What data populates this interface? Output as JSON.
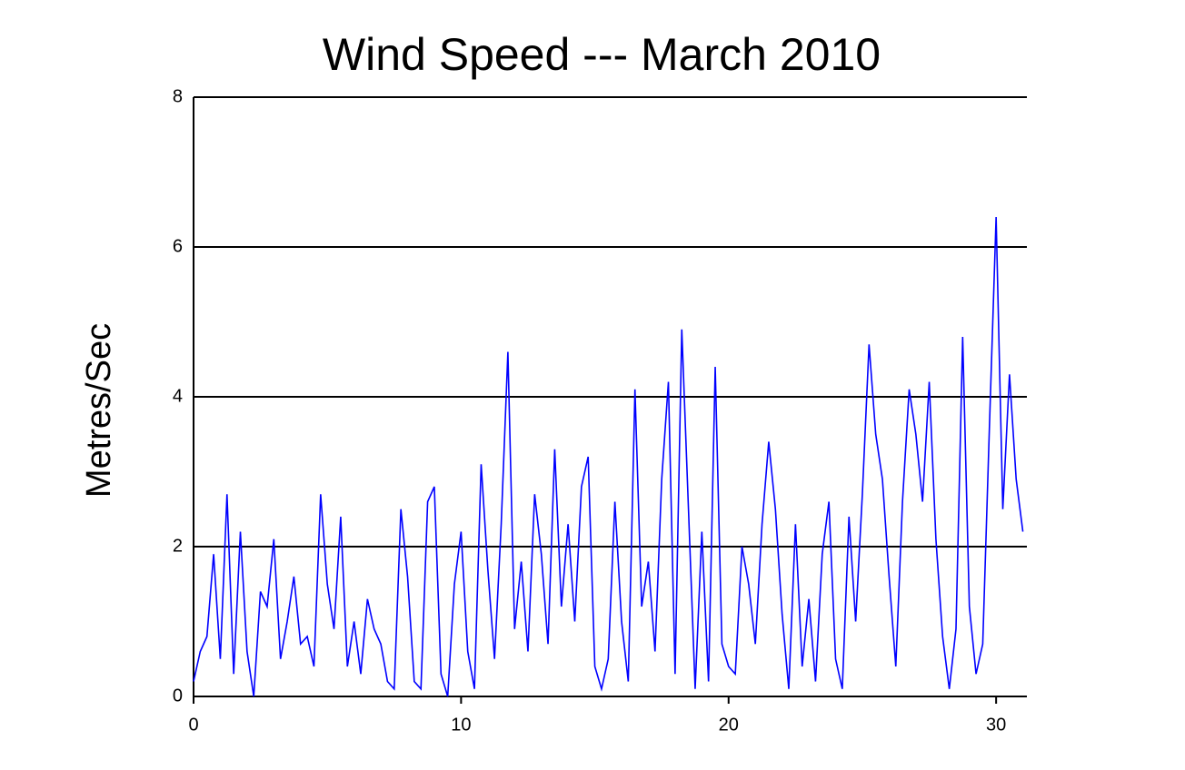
{
  "chart_data": {
    "type": "line",
    "title": "Wind Speed --- March 2010",
    "ylabel": "Metres/Sec",
    "x": [
      0,
      0.25,
      0.5,
      0.75,
      1,
      1.25,
      1.5,
      1.75,
      2,
      2.25,
      2.5,
      2.75,
      3,
      3.25,
      3.5,
      3.75,
      4,
      4.25,
      4.5,
      4.75,
      5,
      5.25,
      5.5,
      5.75,
      6,
      6.25,
      6.5,
      6.75,
      7,
      7.25,
      7.5,
      7.75,
      8,
      8.25,
      8.5,
      8.75,
      9,
      9.25,
      9.5,
      9.75,
      10,
      10.25,
      10.5,
      10.75,
      11,
      11.25,
      11.5,
      11.75,
      12,
      12.25,
      12.5,
      12.75,
      13,
      13.25,
      13.5,
      13.75,
      14,
      14.25,
      14.5,
      14.75,
      15,
      15.25,
      15.5,
      15.75,
      16,
      16.25,
      16.5,
      16.75,
      17,
      17.25,
      17.5,
      17.75,
      18,
      18.25,
      18.5,
      18.75,
      19,
      19.25,
      19.5,
      19.75,
      20,
      20.25,
      20.5,
      20.75,
      21,
      21.25,
      21.5,
      21.75,
      22,
      22.25,
      22.5,
      22.75,
      23,
      23.25,
      23.5,
      23.75,
      24,
      24.25,
      24.5,
      24.75,
      25,
      25.25,
      25.5,
      25.75,
      26,
      26.25,
      26.5,
      26.75,
      27,
      27.25,
      27.5,
      27.75,
      28,
      28.25,
      28.5,
      28.75,
      29,
      29.25,
      29.5,
      29.75,
      30,
      30.25,
      30.5,
      30.75,
      31
    ],
    "series": [
      {
        "name": "Wind speed",
        "color": "#0000ff",
        "values": [
          0.2,
          0.6,
          0.8,
          1.9,
          0.5,
          2.7,
          0.3,
          2.2,
          0.6,
          0.0,
          1.4,
          1.2,
          2.1,
          0.5,
          1.0,
          1.6,
          0.7,
          0.8,
          0.4,
          2.7,
          1.5,
          0.9,
          2.4,
          0.4,
          1.0,
          0.3,
          1.3,
          0.9,
          0.7,
          0.2,
          0.1,
          2.5,
          1.6,
          0.2,
          0.1,
          2.6,
          2.8,
          0.3,
          0.0,
          1.5,
          2.2,
          0.6,
          0.1,
          3.1,
          1.7,
          0.5,
          2.3,
          4.6,
          0.9,
          1.8,
          0.6,
          2.7,
          1.9,
          0.7,
          3.3,
          1.2,
          2.3,
          1.0,
          2.8,
          3.2,
          0.4,
          0.1,
          0.5,
          2.6,
          1.0,
          0.2,
          4.1,
          1.2,
          1.8,
          0.6,
          2.9,
          4.2,
          0.3,
          4.9,
          2.5,
          0.1,
          2.2,
          0.2,
          4.4,
          0.7,
          0.4,
          0.3,
          2.0,
          1.5,
          0.7,
          2.3,
          3.4,
          2.5,
          1.1,
          0.1,
          2.3,
          0.4,
          1.3,
          0.2,
          1.9,
          2.6,
          0.5,
          0.1,
          2.4,
          1.0,
          2.7,
          4.7,
          3.5,
          2.9,
          1.6,
          0.4,
          2.6,
          4.1,
          3.5,
          2.6,
          4.2,
          2.1,
          0.8,
          0.1,
          0.9,
          4.8,
          1.2,
          0.3,
          0.7,
          3.6,
          6.4,
          2.5,
          4.3,
          2.9,
          2.2
        ]
      }
    ],
    "xlim": [
      0,
      31.15
    ],
    "ylim": [
      0,
      8
    ],
    "xticks": [
      0,
      10,
      20,
      30
    ],
    "yticks": [
      0,
      2,
      4,
      6,
      8
    ],
    "grid": true
  }
}
